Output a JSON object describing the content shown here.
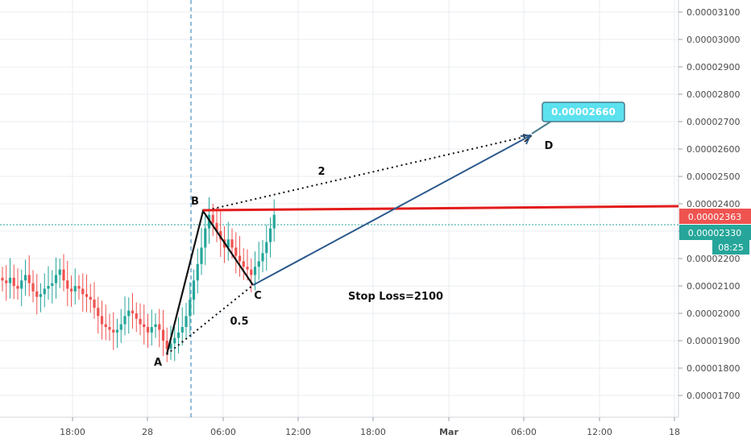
{
  "chart_data": {
    "type": "candlestick",
    "xlabel": "",
    "ylabel": "",
    "ylim": [
      1.6e-06,
      3.2e-06
    ],
    "grid": true,
    "x_ticks": [
      "18:00",
      "28",
      "06:00",
      "12:00",
      "18:00",
      "Mar",
      "06:00",
      "12:00",
      "18"
    ],
    "y_ticks": [
      "0.00001700",
      "0.00001800",
      "0.00001900",
      "0.00002000",
      "0.00002100",
      "0.00002200",
      "0.00002300",
      "0.00002400",
      "0.00002500",
      "0.00002600",
      "0.00002700",
      "0.00002800",
      "0.00002900",
      "0.00003000",
      "0.00003100"
    ],
    "y_tick_values": [
      1.7e-05,
      1.8e-05,
      1.9e-05,
      2e-05,
      2.1e-05,
      2.2e-05,
      2.3e-05,
      2.4e-05,
      2.5e-05,
      2.6e-05,
      2.7e-05,
      2.8e-05,
      2.9e-05,
      3e-05,
      3.1e-05
    ],
    "series": [
      {
        "close_values": [
          2.12e-05,
          2.11e-05,
          2.13e-05,
          2.1e-05,
          2.09e-05,
          2.12e-05,
          2.14e-05,
          2.11e-05,
          2.08e-05,
          2.06e-05,
          2.07e-05,
          2.09e-05,
          2.1e-05,
          2.11e-05,
          2.14e-05,
          2.16e-05,
          2.12e-05,
          2.09e-05,
          2.08e-05,
          2.1e-05,
          2.09e-05,
          2.07e-05,
          2.06e-05,
          2.05e-05,
          2.02e-05,
          1.99e-05,
          1.96e-05,
          1.95e-05,
          1.94e-05,
          1.93e-05,
          1.94e-05,
          1.96e-05,
          1.99e-05,
          2.01e-05,
          2e-05,
          1.98e-05,
          1.96e-05,
          1.95e-05,
          1.93e-05,
          1.95e-05,
          1.96e-05,
          1.94e-05,
          1.9e-05,
          1.87e-05,
          1.89e-05,
          1.91e-05,
          1.93e-05,
          1.95e-05,
          1.99e-05,
          2.05e-05,
          2.12e-05,
          2.18e-05,
          2.24e-05,
          2.31e-05,
          2.36e-05,
          2.33e-05,
          2.3e-05,
          2.27e-05,
          2.24e-05,
          2.27e-05,
          2.24e-05,
          2.21e-05,
          2.19e-05,
          2.17e-05,
          2.16e-05,
          2.14e-05,
          2.17e-05,
          2.19e-05,
          2.22e-05,
          2.26e-05,
          2.31e-05,
          2.36e-05
        ]
      }
    ],
    "annotations": {
      "points": [
        {
          "label": "A",
          "price": 1.86e-05
        },
        {
          "label": "B",
          "price": 2.38e-05
        },
        {
          "label": "C",
          "price": 2.11e-05
        },
        {
          "label": "D",
          "price": 2.66e-05
        }
      ],
      "ratio_ab": "2",
      "ratio_bc": "0.5",
      "stop_loss_text": "Stop Loss=2100",
      "target_label": "0.00002660",
      "resistance_level": 2.4e-05
    },
    "price_badges": [
      {
        "text": "0.00002363",
        "color": "#ef5350"
      },
      {
        "text": "0.00002330",
        "color": "#26a69a"
      },
      {
        "text": "08:25",
        "color": "#26a69a"
      }
    ],
    "colors": {
      "up": "#26a69a",
      "down": "#ef5350",
      "resistance_line": "#e31b1b",
      "projection_line": "#2c5a8c",
      "target_badge_fill": "#5ce1ef",
      "target_badge_border": "#4a7c8c",
      "grid": "#e9eef2"
    }
  }
}
